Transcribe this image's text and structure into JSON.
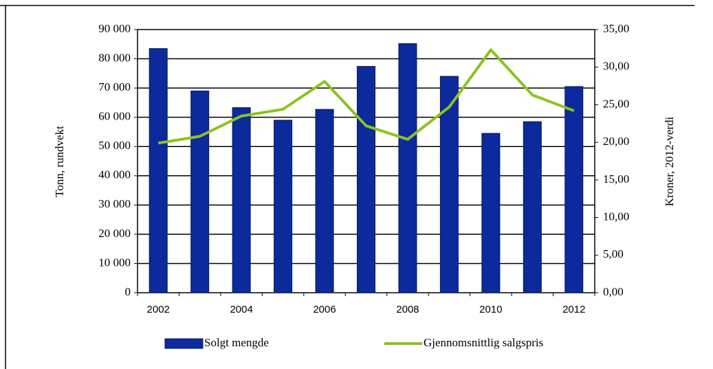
{
  "chart_data": {
    "type": "bar",
    "categories": [
      "2002",
      null,
      "2004",
      null,
      "2006",
      null,
      "2008",
      null,
      "2010",
      null,
      "2012"
    ],
    "series": [
      {
        "name": "Solgt mengde",
        "type": "bar",
        "color": "#0c2a9c",
        "values": [
          83500,
          69000,
          63300,
          59000,
          62700,
          77400,
          85200,
          74000,
          54500,
          58500,
          70500
        ]
      },
      {
        "name": "Gjennomsnittlig salgspris",
        "type": "line",
        "axis": "y2",
        "color": "#8cc21e",
        "values": [
          19.9,
          20.8,
          23.5,
          24.4,
          28.1,
          22.2,
          20.4,
          24.7,
          32.3,
          26.3,
          24.2
        ]
      }
    ],
    "ylabel": "Tonn, rundvekt",
    "y2label": "Kroner, 2012-verdi",
    "ylim": [
      0,
      90000
    ],
    "yticks": [
      0,
      {
        "value": 10000,
        "label": "10 000"
      },
      {
        "value": 20000,
        "label": "20 000"
      },
      {
        "value": 30000,
        "label": "30 000"
      },
      {
        "value": 40000,
        "label": "40 000"
      },
      {
        "value": 50000,
        "label": "50 000"
      },
      {
        "value": 60000,
        "label": "60 000"
      },
      {
        "value": 70000,
        "label": "70 000"
      },
      {
        "value": 80000,
        "label": "80 000"
      },
      {
        "value": 90000,
        "label": "90 000"
      }
    ],
    "y2lim": [
      0,
      35
    ],
    "y2ticks": [
      {
        "value": 0,
        "label": "0,00"
      },
      {
        "value": 5,
        "label": "5,00"
      },
      {
        "value": 10,
        "label": "10,00"
      },
      {
        "value": 15,
        "label": "15,00"
      },
      {
        "value": 20,
        "label": "20,00"
      },
      {
        "value": 25,
        "label": "25,00"
      },
      {
        "value": 30,
        "label": "30,00"
      },
      {
        "value": 35,
        "label": "35,00"
      }
    ],
    "grid": true,
    "legend": "bottom"
  }
}
